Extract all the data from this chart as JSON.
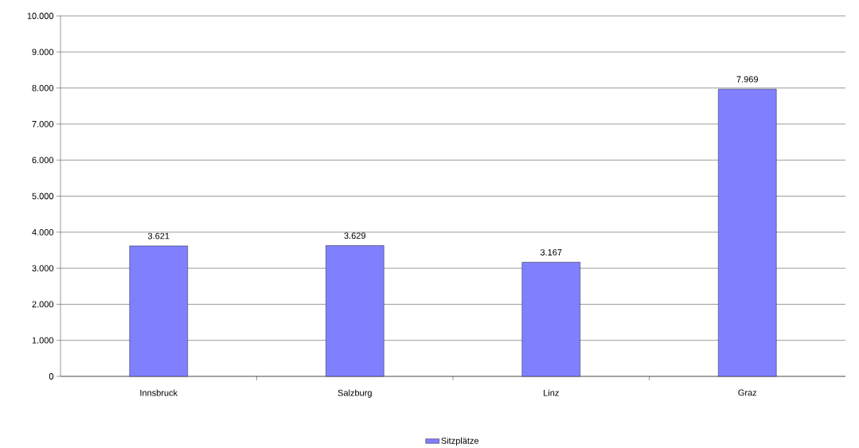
{
  "chart_data": {
    "type": "bar",
    "categories": [
      "Innsbruck",
      "Salzburg",
      "Linz",
      "Graz"
    ],
    "series": [
      {
        "name": "Sitzplätze",
        "color": "#8080ff",
        "values": [
          3621,
          3629,
          3167,
          7969
        ],
        "value_labels": [
          "3.621",
          "3.629",
          "3.167",
          "7.969"
        ]
      }
    ],
    "ylim": [
      0,
      10000
    ],
    "yticks": [
      {
        "value": 0,
        "label": "0"
      },
      {
        "value": 1000,
        "label": "1.000"
      },
      {
        "value": 2000,
        "label": "2.000"
      },
      {
        "value": 3000,
        "label": "3.000"
      },
      {
        "value": 4000,
        "label": "4.000"
      },
      {
        "value": 5000,
        "label": "5.000"
      },
      {
        "value": 6000,
        "label": "6.000"
      },
      {
        "value": 7000,
        "label": "7.000"
      },
      {
        "value": 8000,
        "label": "8.000"
      },
      {
        "value": 9000,
        "label": "9.000"
      },
      {
        "value": 10000,
        "label": "10.000"
      }
    ],
    "grid": "y",
    "legend": "bottom"
  }
}
